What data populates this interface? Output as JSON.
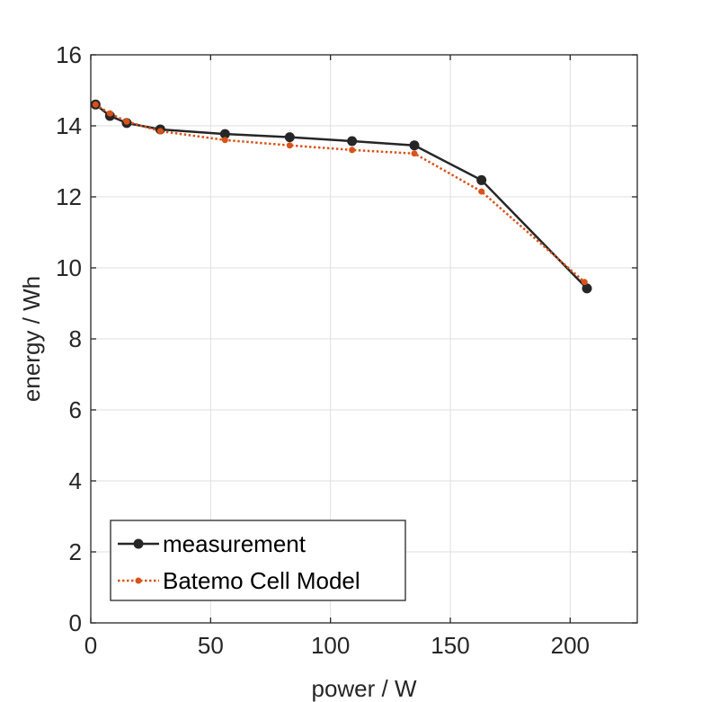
{
  "chart_data": {
    "type": "line",
    "title": "",
    "xlabel": "power / W",
    "ylabel": "energy / Wh",
    "xlim": [
      0,
      228
    ],
    "ylim": [
      0,
      16
    ],
    "xticks": [
      0,
      50,
      100,
      150,
      200
    ],
    "yticks": [
      0,
      2,
      4,
      6,
      8,
      10,
      12,
      14,
      16
    ],
    "grid": true,
    "legend_position": "bottom-left",
    "series": [
      {
        "name": "measurement",
        "color": "#262626",
        "line_style": "solid",
        "marker": "filled-circle",
        "x": [
          2,
          8,
          15,
          29,
          56,
          83,
          109,
          135,
          163,
          207
        ],
        "y": [
          14.6,
          14.28,
          14.08,
          13.9,
          13.77,
          13.68,
          13.57,
          13.45,
          12.47,
          9.42
        ]
      },
      {
        "name": "Batemo Cell Model",
        "color": "#D95319",
        "line_style": "dotted",
        "marker": "small-filled-circle",
        "x": [
          2,
          8,
          15,
          29,
          56,
          83,
          109,
          135,
          163,
          206
        ],
        "y": [
          14.6,
          14.35,
          14.12,
          13.85,
          13.6,
          13.45,
          13.32,
          13.22,
          12.15,
          9.6
        ]
      }
    ]
  }
}
